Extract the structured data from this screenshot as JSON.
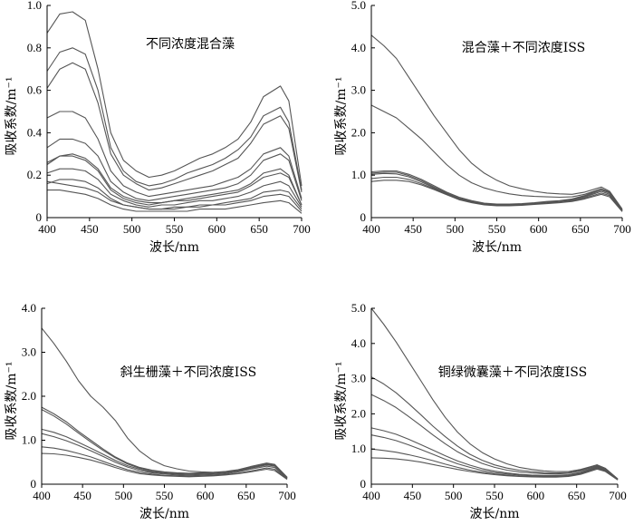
{
  "chart_data": [
    {
      "type": "line",
      "title": "不同浓度混合藻",
      "xlabel": "波长/nm",
      "ylabel": "吸收系数/m⁻¹",
      "xlim": [
        400,
        700
      ],
      "ylim": [
        0,
        1.0
      ],
      "xticks": [
        "400",
        "450",
        "500",
        "550",
        "600",
        "650",
        "700"
      ],
      "yticks": [
        "0",
        "0.2",
        "0.4",
        "0.6",
        "0.8",
        "1.0"
      ],
      "ytick_values": [
        0,
        0.2,
        0.4,
        0.6,
        0.8,
        1.0
      ],
      "series": [
        {
          "values": [
            0.87,
            0.96,
            0.97,
            0.93,
            0.7,
            0.4,
            0.27,
            0.22,
            0.19,
            0.2,
            0.22,
            0.25,
            0.28,
            0.3,
            0.33,
            0.37,
            0.45,
            0.57,
            0.62,
            0.55,
            0.15
          ]
        },
        {
          "values": [
            0.69,
            0.78,
            0.8,
            0.77,
            0.6,
            0.33,
            0.22,
            0.17,
            0.15,
            0.16,
            0.18,
            0.21,
            0.23,
            0.25,
            0.28,
            0.32,
            0.38,
            0.48,
            0.52,
            0.45,
            0.13
          ]
        },
        {
          "values": [
            0.61,
            0.7,
            0.73,
            0.7,
            0.54,
            0.3,
            0.2,
            0.16,
            0.13,
            0.14,
            0.16,
            0.18,
            0.2,
            0.22,
            0.25,
            0.28,
            0.35,
            0.44,
            0.48,
            0.42,
            0.12
          ]
        },
        {
          "values": [
            0.47,
            0.5,
            0.5,
            0.47,
            0.37,
            0.22,
            0.15,
            0.12,
            0.1,
            0.11,
            0.12,
            0.13,
            0.14,
            0.15,
            0.17,
            0.19,
            0.23,
            0.3,
            0.33,
            0.29,
            0.09
          ]
        },
        {
          "values": [
            0.33,
            0.37,
            0.37,
            0.35,
            0.29,
            0.17,
            0.12,
            0.09,
            0.08,
            0.09,
            0.1,
            0.11,
            0.12,
            0.13,
            0.14,
            0.16,
            0.2,
            0.27,
            0.3,
            0.27,
            0.08
          ]
        },
        {
          "values": [
            0.26,
            0.29,
            0.3,
            0.28,
            0.23,
            0.14,
            0.1,
            0.08,
            0.07,
            0.07,
            0.08,
            0.09,
            0.1,
            0.11,
            0.12,
            0.13,
            0.16,
            0.21,
            0.23,
            0.2,
            0.06
          ]
        },
        {
          "values": [
            0.25,
            0.29,
            0.29,
            0.27,
            0.22,
            0.13,
            0.09,
            0.07,
            0.06,
            0.07,
            0.08,
            0.08,
            0.09,
            0.1,
            0.11,
            0.12,
            0.15,
            0.19,
            0.21,
            0.19,
            0.06
          ]
        },
        {
          "values": [
            0.21,
            0.23,
            0.23,
            0.22,
            0.18,
            0.11,
            0.08,
            0.06,
            0.05,
            0.06,
            0.06,
            0.07,
            0.08,
            0.08,
            0.09,
            0.1,
            0.12,
            0.15,
            0.17,
            0.15,
            0.05
          ]
        },
        {
          "values": [
            0.16,
            0.18,
            0.18,
            0.17,
            0.14,
            0.09,
            0.06,
            0.05,
            0.04,
            0.04,
            0.05,
            0.05,
            0.06,
            0.06,
            0.07,
            0.08,
            0.09,
            0.12,
            0.13,
            0.12,
            0.04
          ]
        },
        {
          "values": [
            0.17,
            0.16,
            0.15,
            0.14,
            0.12,
            0.08,
            0.06,
            0.05,
            0.04,
            0.04,
            0.04,
            0.05,
            0.05,
            0.06,
            0.06,
            0.07,
            0.08,
            0.1,
            0.11,
            0.1,
            0.03
          ]
        },
        {
          "values": [
            0.13,
            0.13,
            0.12,
            0.11,
            0.09,
            0.06,
            0.04,
            0.03,
            0.03,
            0.03,
            0.03,
            0.03,
            0.04,
            0.04,
            0.04,
            0.05,
            0.06,
            0.07,
            0.08,
            0.07,
            0.02
          ]
        }
      ]
    },
    {
      "type": "line",
      "title": "混合藻＋不同浓度ISS",
      "xlabel": "波长/nm",
      "ylabel": "吸收系数/m⁻¹",
      "xlim": [
        400,
        700
      ],
      "ylim": [
        0,
        5.0
      ],
      "xticks": [
        "400",
        "450",
        "500",
        "550",
        "600",
        "650",
        "700"
      ],
      "yticks": [
        "0",
        "1.0",
        "2.0",
        "3.0",
        "4.0",
        "5.0"
      ],
      "ytick_values": [
        0,
        1,
        2,
        3,
        4,
        5
      ],
      "series": [
        {
          "values": [
            4.3,
            4.05,
            3.75,
            3.3,
            2.85,
            2.4,
            2.0,
            1.6,
            1.28,
            1.05,
            0.88,
            0.75,
            0.68,
            0.62,
            0.58,
            0.56,
            0.55,
            0.6,
            0.72,
            0.62,
            0.2
          ]
        },
        {
          "values": [
            2.65,
            2.5,
            2.35,
            2.1,
            1.85,
            1.55,
            1.25,
            1.0,
            0.82,
            0.7,
            0.62,
            0.56,
            0.52,
            0.5,
            0.49,
            0.48,
            0.49,
            0.55,
            0.68,
            0.58,
            0.18
          ]
        },
        {
          "values": [
            1.08,
            1.1,
            1.1,
            1.02,
            0.9,
            0.75,
            0.6,
            0.48,
            0.4,
            0.34,
            0.32,
            0.32,
            0.33,
            0.35,
            0.38,
            0.4,
            0.44,
            0.52,
            0.68,
            0.6,
            0.18
          ]
        },
        {
          "values": [
            1.05,
            1.07,
            1.07,
            0.99,
            0.87,
            0.72,
            0.58,
            0.46,
            0.38,
            0.33,
            0.31,
            0.31,
            0.32,
            0.34,
            0.37,
            0.39,
            0.43,
            0.5,
            0.65,
            0.58,
            0.17
          ]
        },
        {
          "values": [
            1.02,
            1.04,
            1.03,
            0.96,
            0.84,
            0.7,
            0.56,
            0.44,
            0.37,
            0.32,
            0.3,
            0.3,
            0.31,
            0.33,
            0.35,
            0.38,
            0.41,
            0.48,
            0.62,
            0.55,
            0.16
          ]
        },
        {
          "values": [
            0.92,
            0.95,
            0.95,
            0.9,
            0.8,
            0.68,
            0.55,
            0.43,
            0.36,
            0.31,
            0.29,
            0.29,
            0.3,
            0.32,
            0.34,
            0.36,
            0.39,
            0.46,
            0.58,
            0.52,
            0.15
          ]
        },
        {
          "values": [
            0.85,
            0.88,
            0.88,
            0.85,
            0.77,
            0.66,
            0.54,
            0.42,
            0.35,
            0.3,
            0.28,
            0.28,
            0.29,
            0.31,
            0.33,
            0.35,
            0.38,
            0.44,
            0.55,
            0.49,
            0.14
          ]
        }
      ]
    },
    {
      "type": "line",
      "title": "斜生栅藻＋不同浓度ISS",
      "xlabel": "波长/nm",
      "ylabel": "吸收系数/m⁻¹",
      "xlim": [
        400,
        700
      ],
      "ylim": [
        0,
        4.0
      ],
      "xticks": [
        "400",
        "450",
        "500",
        "550",
        "600",
        "650",
        "700"
      ],
      "yticks": [
        "0",
        "1.0",
        "2.0",
        "3.0",
        "4.0"
      ],
      "ytick_values": [
        0,
        1,
        2,
        3,
        4
      ],
      "series": [
        {
          "values": [
            3.55,
            3.2,
            2.8,
            2.35,
            2.0,
            1.75,
            1.45,
            1.05,
            0.75,
            0.55,
            0.42,
            0.35,
            0.3,
            0.28,
            0.27,
            0.28,
            0.3,
            0.38,
            0.45,
            0.42,
            0.15
          ]
        },
        {
          "values": [
            1.75,
            1.6,
            1.42,
            1.2,
            1.0,
            0.8,
            0.62,
            0.48,
            0.38,
            0.32,
            0.28,
            0.26,
            0.25,
            0.26,
            0.27,
            0.29,
            0.33,
            0.4,
            0.48,
            0.45,
            0.16
          ]
        },
        {
          "values": [
            1.7,
            1.55,
            1.37,
            1.16,
            0.96,
            0.77,
            0.6,
            0.46,
            0.36,
            0.3,
            0.27,
            0.25,
            0.24,
            0.25,
            0.26,
            0.28,
            0.32,
            0.38,
            0.46,
            0.43,
            0.15
          ]
        },
        {
          "values": [
            1.25,
            1.18,
            1.08,
            0.95,
            0.82,
            0.68,
            0.54,
            0.42,
            0.34,
            0.28,
            0.25,
            0.23,
            0.22,
            0.23,
            0.24,
            0.26,
            0.3,
            0.36,
            0.44,
            0.41,
            0.14
          ]
        },
        {
          "values": [
            1.15,
            1.08,
            0.99,
            0.88,
            0.76,
            0.63,
            0.5,
            0.39,
            0.31,
            0.26,
            0.23,
            0.21,
            0.2,
            0.21,
            0.22,
            0.24,
            0.28,
            0.34,
            0.41,
            0.38,
            0.13
          ]
        },
        {
          "values": [
            0.85,
            0.82,
            0.77,
            0.7,
            0.62,
            0.52,
            0.42,
            0.33,
            0.27,
            0.23,
            0.2,
            0.19,
            0.18,
            0.19,
            0.2,
            0.22,
            0.25,
            0.3,
            0.37,
            0.34,
            0.12
          ]
        },
        {
          "values": [
            0.7,
            0.69,
            0.66,
            0.61,
            0.55,
            0.47,
            0.38,
            0.3,
            0.24,
            0.21,
            0.19,
            0.18,
            0.17,
            0.18,
            0.19,
            0.21,
            0.24,
            0.28,
            0.34,
            0.31,
            0.11
          ]
        }
      ]
    },
    {
      "type": "line",
      "title": "铜绿微囊藻＋不同浓度ISS",
      "xlabel": "波长/nm",
      "ylabel": "吸收系数/m⁻¹",
      "xlim": [
        400,
        700
      ],
      "ylim": [
        0,
        5.0
      ],
      "xticks": [
        "400",
        "450",
        "500",
        "550",
        "600",
        "650",
        "700"
      ],
      "yticks": [
        "0",
        "1.0",
        "2.0",
        "3.0",
        "4.0",
        "5.0"
      ],
      "ytick_values": [
        0,
        1,
        2,
        3,
        4,
        5
      ],
      "series": [
        {
          "values": [
            5.0,
            4.55,
            4.05,
            3.5,
            2.95,
            2.4,
            1.9,
            1.48,
            1.15,
            0.9,
            0.72,
            0.58,
            0.48,
            0.42,
            0.38,
            0.36,
            0.36,
            0.42,
            0.55,
            0.45,
            0.15
          ]
        },
        {
          "values": [
            3.05,
            2.85,
            2.6,
            2.3,
            1.98,
            1.65,
            1.35,
            1.08,
            0.85,
            0.68,
            0.55,
            0.46,
            0.4,
            0.36,
            0.33,
            0.32,
            0.33,
            0.4,
            0.55,
            0.45,
            0.15
          ]
        },
        {
          "values": [
            2.55,
            2.38,
            2.18,
            1.93,
            1.67,
            1.4,
            1.15,
            0.92,
            0.74,
            0.59,
            0.48,
            0.4,
            0.35,
            0.32,
            0.3,
            0.29,
            0.31,
            0.38,
            0.52,
            0.43,
            0.14
          ]
        },
        {
          "values": [
            1.6,
            1.52,
            1.42,
            1.28,
            1.13,
            0.97,
            0.81,
            0.66,
            0.54,
            0.44,
            0.37,
            0.32,
            0.28,
            0.26,
            0.25,
            0.25,
            0.27,
            0.34,
            0.5,
            0.42,
            0.14
          ]
        },
        {
          "values": [
            1.4,
            1.33,
            1.24,
            1.12,
            0.99,
            0.85,
            0.71,
            0.58,
            0.48,
            0.39,
            0.33,
            0.29,
            0.26,
            0.24,
            0.23,
            0.23,
            0.25,
            0.32,
            0.48,
            0.4,
            0.13
          ]
        },
        {
          "values": [
            1.0,
            0.96,
            0.91,
            0.84,
            0.76,
            0.67,
            0.57,
            0.48,
            0.4,
            0.34,
            0.29,
            0.26,
            0.23,
            0.22,
            0.21,
            0.21,
            0.23,
            0.3,
            0.46,
            0.38,
            0.13
          ]
        },
        {
          "values": [
            0.75,
            0.74,
            0.72,
            0.68,
            0.63,
            0.56,
            0.49,
            0.42,
            0.36,
            0.31,
            0.27,
            0.24,
            0.22,
            0.21,
            0.2,
            0.2,
            0.22,
            0.28,
            0.43,
            0.36,
            0.12
          ]
        }
      ]
    }
  ],
  "x_sample_wavelengths": [
    400,
    415,
    430,
    445,
    460,
    475,
    490,
    505,
    520,
    535,
    550,
    565,
    580,
    595,
    610,
    625,
    640,
    655,
    675,
    685,
    700
  ],
  "series_color": "#555555",
  "axis_color": "#000000"
}
